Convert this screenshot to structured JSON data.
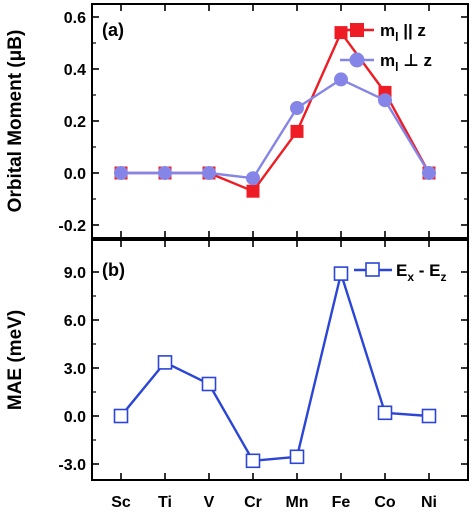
{
  "chart_data": [
    {
      "type": "line",
      "panel_label": "(a)",
      "ylabel": "Orbital Moment (μB)",
      "xlabel": "",
      "categories": [
        "Sc",
        "Ti",
        "V",
        "Cr",
        "Mn",
        "Fe",
        "Co",
        "Ni"
      ],
      "ylim": [
        -0.25,
        0.65
      ],
      "yticks": [
        "0.6",
        "0.4",
        "0.2",
        "0.0",
        "-0.2"
      ],
      "ytick_values": [
        0.6,
        0.4,
        0.2,
        0.0,
        -0.2
      ],
      "grid": false,
      "legend_position": "top-right",
      "series": [
        {
          "name": "ml || z",
          "name_main": "m",
          "name_sub": "l",
          "name_rest": " || z",
          "color": "#ee1c24",
          "marker": "filled-square",
          "values": [
            0.0,
            0.0,
            0.0,
            -0.07,
            0.16,
            0.54,
            0.31,
            0.0
          ]
        },
        {
          "name": "ml ⊥ z",
          "name_main": "m",
          "name_sub": "l",
          "name_rest": " ⊥ z",
          "color": "#8585e8",
          "marker": "filled-circle",
          "values": [
            0.0,
            0.0,
            0.0,
            -0.02,
            0.25,
            0.36,
            0.28,
            0.0
          ]
        }
      ]
    },
    {
      "type": "line",
      "panel_label": "(b)",
      "ylabel": "MAE (meV)",
      "xlabel": "",
      "categories": [
        "Sc",
        "Ti",
        "V",
        "Cr",
        "Mn",
        "Fe",
        "Co",
        "Ni"
      ],
      "ylim": [
        -4.0,
        11.0
      ],
      "yticks": [
        "9.0",
        "6.0",
        "3.0",
        "0.0",
        "-3.0"
      ],
      "ytick_values": [
        9.0,
        6.0,
        3.0,
        0.0,
        -3.0
      ],
      "grid": false,
      "legend_position": "top-right",
      "series": [
        {
          "name": "Ex - Ez",
          "name_main": "E",
          "name_sub": "x",
          "name_rest": " - E",
          "name_sub2": "z",
          "color": "#2b45d6",
          "marker": "open-square",
          "values": [
            0.0,
            3.35,
            2.0,
            -2.8,
            -2.55,
            8.9,
            0.2,
            0.0
          ]
        }
      ]
    }
  ]
}
